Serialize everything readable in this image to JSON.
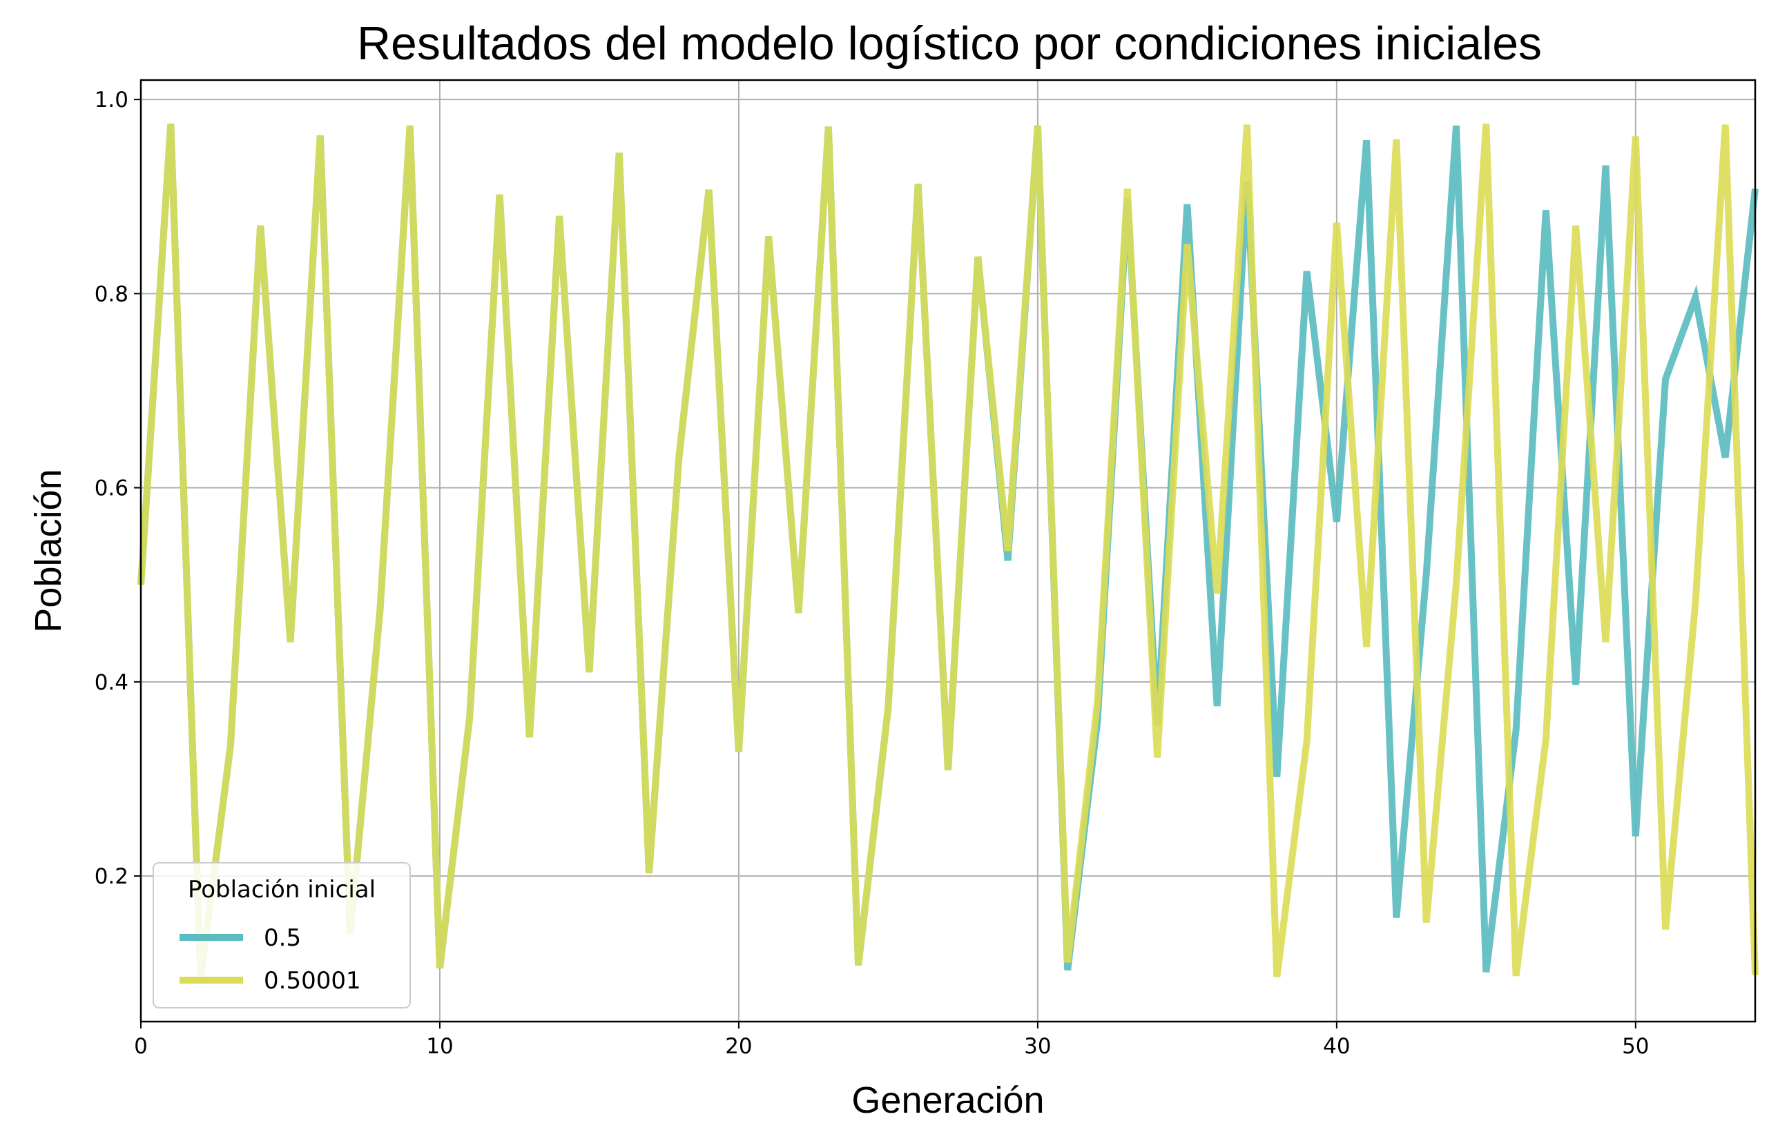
{
  "chart_data": {
    "type": "line",
    "title": "Resultados del modelo logístico por condiciones iniciales",
    "xlabel": "Generación",
    "ylabel": "Población",
    "xlim": [
      0,
      54
    ],
    "ylim": [
      0.05,
      1.02
    ],
    "xticks": [
      0,
      10,
      20,
      30,
      40,
      50
    ],
    "yticks": [
      0.2,
      0.4,
      0.6,
      0.8,
      1.0
    ],
    "xtick_labels": [
      "0",
      "10",
      "20",
      "30",
      "40",
      "50"
    ],
    "ytick_labels": [
      "0.2",
      "0.4",
      "0.6",
      "0.8",
      "1.0"
    ],
    "grid": true,
    "legend": {
      "title": "Población inicial",
      "position": "lower-left"
    },
    "x": [
      0,
      1,
      2,
      3,
      4,
      5,
      6,
      7,
      8,
      9,
      10,
      11,
      12,
      13,
      14,
      15,
      16,
      17,
      18,
      19,
      20,
      21,
      22,
      23,
      24,
      25,
      26,
      27,
      28,
      29,
      30,
      31,
      32,
      33,
      34,
      35,
      36,
      37,
      38,
      39,
      40,
      41,
      42,
      43,
      44,
      45,
      46,
      47,
      48,
      49,
      50,
      51,
      52,
      53,
      54
    ],
    "series": [
      {
        "name": "0.5",
        "color": "#5bbcbf",
        "values": [
          0.5,
          0.975,
          0.095,
          0.335,
          0.87,
          0.441,
          0.963,
          0.14,
          0.474,
          0.973,
          0.105,
          0.364,
          0.902,
          0.343,
          0.88,
          0.41,
          0.945,
          0.203,
          0.631,
          0.907,
          0.328,
          0.859,
          0.471,
          0.972,
          0.108,
          0.374,
          0.913,
          0.309,
          0.838,
          0.525,
          0.973,
          0.103,
          0.36,
          0.898,
          0.356,
          0.892,
          0.375,
          0.915,
          0.302,
          0.823,
          0.565,
          0.958,
          0.157,
          0.511,
          0.973,
          0.101,
          0.35,
          0.886,
          0.397,
          0.932,
          0.241,
          0.712,
          0.796,
          0.631,
          0.908
        ]
      },
      {
        "name": "0.50001",
        "color": "#dbdc55",
        "values": [
          0.5,
          0.975,
          0.095,
          0.335,
          0.87,
          0.441,
          0.963,
          0.14,
          0.474,
          0.973,
          0.105,
          0.364,
          0.902,
          0.343,
          0.88,
          0.41,
          0.945,
          0.203,
          0.631,
          0.907,
          0.328,
          0.859,
          0.471,
          0.972,
          0.108,
          0.374,
          0.913,
          0.309,
          0.838,
          0.535,
          0.973,
          0.111,
          0.38,
          0.908,
          0.322,
          0.851,
          0.491,
          0.974,
          0.096,
          0.339,
          0.873,
          0.436,
          0.959,
          0.152,
          0.501,
          0.975,
          0.097,
          0.341,
          0.87,
          0.441,
          0.962,
          0.145,
          0.481,
          0.974,
          0.098
        ]
      }
    ]
  }
}
